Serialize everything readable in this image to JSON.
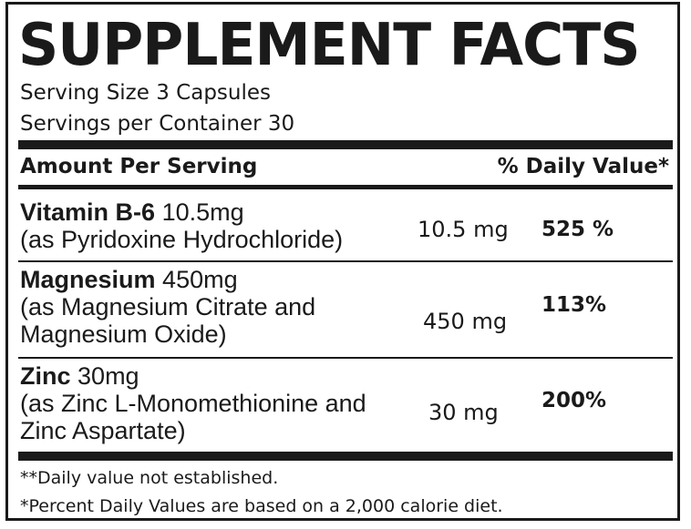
{
  "title": "SUPPLEMENT FACTS",
  "serving_size": "Serving Size 3 Capsules",
  "servings_per_container": "Servings per Container 30",
  "header": {
    "amount_label": "Amount Per Serving",
    "dv_label": "% Daily Value*"
  },
  "nutrients": [
    {
      "name": "Vitamin B-6",
      "dose": "10.5mg",
      "source_lines": [
        "(as Pyridoxine Hydrochloride)"
      ],
      "amount": "10.5 mg",
      "daily_value": "525 %"
    },
    {
      "name": "Magnesium",
      "dose": "450mg",
      "source_lines": [
        "(as Magnesium Citrate and",
        "Magnesium Oxide)"
      ],
      "amount": "450 mg",
      "daily_value": "113%"
    },
    {
      "name": "Zinc",
      "dose": "30mg",
      "source_lines": [
        "(as Zinc L-Monomethionine and",
        "Zinc Aspartate)"
      ],
      "amount": "30 mg",
      "daily_value": "200%"
    }
  ],
  "footnotes": [
    "**Daily value not established.",
    "*Percent Daily Values are based on a 2,000 calorie diet."
  ]
}
